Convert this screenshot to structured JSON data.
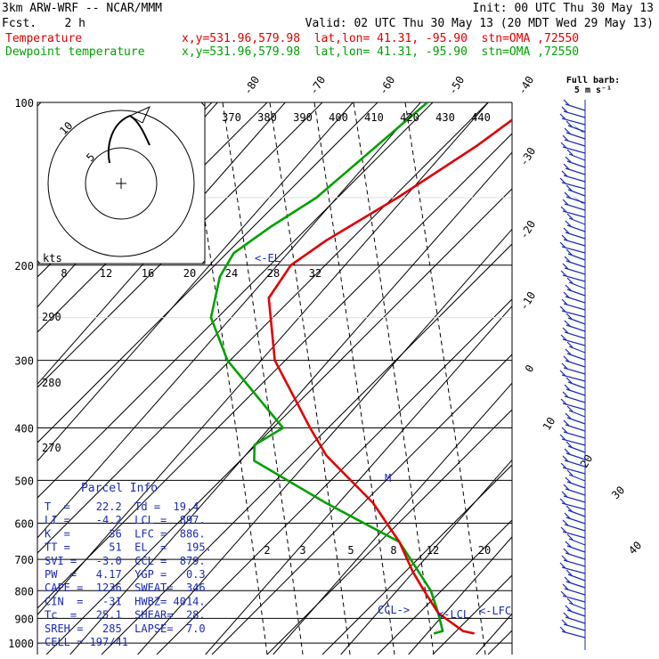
{
  "header": {
    "model": "3km ARW-WRF -- NCAR/MMM",
    "init": "Init: 00 UTC Thu 30 May 13",
    "fcst": "Fcst.    2 h",
    "valid": "Valid: 02 UTC Thu 30 May 13 (20 MDT Wed 29 May 13)",
    "temp_label": "Temperature",
    "dew_label": "Dewpoint temperature",
    "temp_info": "x,y=531.96,579.98  lat,lon= 41.31, -95.90  stn=OMA ,72550",
    "dew_info": "x,y=531.96,579.98  lat,lon= 41.31, -95.90  stn=OMA ,72550"
  },
  "colors": {
    "temperature": "#e00000",
    "dewpoint": "#00a000",
    "parcel": "#1a2ab0",
    "hodograph": "#000000"
  },
  "barb_legend": {
    "title": "Full barb:",
    "value": "5 m s⁻¹"
  },
  "chart_data": {
    "type": "skew-t",
    "pressure_ticks": [
      "100",
      "200",
      "300",
      "400",
      "500",
      "600",
      "700",
      "800",
      "900",
      "1000"
    ],
    "temperature_ticks": [
      "-80",
      "-70",
      "-60",
      "-50",
      "-40",
      "-30",
      "-20",
      "-10",
      "0",
      "10",
      "20",
      "30",
      "40"
    ],
    "theta_labels": [
      "370",
      "380",
      "390",
      "400",
      "410",
      "420",
      "430",
      "440"
    ],
    "theta_side_labels": [
      "290",
      "280",
      "270"
    ],
    "mixing_ratio_labels": [
      "2",
      "3",
      "5",
      "8",
      "12",
      "20"
    ],
    "kts_label": "kts",
    "kts_ticks": [
      "8",
      "12",
      "16",
      "20",
      "24",
      "28",
      "32"
    ],
    "hodograph_rings": [
      "5",
      "10"
    ],
    "level_markers": {
      "el": "<-EL",
      "ccl": "CCL->",
      "lcl": "<-LCL",
      "lfc": "<-LFC",
      "m": "M"
    },
    "temperature_profile": [
      [
        -53,
        100
      ],
      [
        -56,
        120
      ],
      [
        -61,
        150
      ],
      [
        -66,
        180
      ],
      [
        -68,
        200
      ],
      [
        -67,
        230
      ],
      [
        -58,
        300
      ],
      [
        -44,
        400
      ],
      [
        -38,
        450
      ],
      [
        -25,
        550
      ],
      [
        -16,
        650
      ],
      [
        -10,
        740
      ],
      [
        -6,
        800
      ],
      [
        -1,
        880
      ],
      [
        5,
        950
      ],
      [
        7,
        960
      ]
    ],
    "dewpoint_profile": [
      [
        -69,
        100
      ],
      [
        -73,
        150
      ],
      [
        -76,
        170
      ],
      [
        -78,
        190
      ],
      [
        -77,
        210
      ],
      [
        -73,
        250
      ],
      [
        -65,
        300
      ],
      [
        -48,
        400
      ],
      [
        -50,
        430
      ],
      [
        -48,
        460
      ],
      [
        -32,
        550
      ],
      [
        -16,
        650
      ],
      [
        -5,
        800
      ],
      [
        -1,
        880
      ],
      [
        2,
        950
      ],
      [
        1,
        960
      ]
    ],
    "wind_barbs": [
      "100",
      "150",
      "200",
      "250",
      "300",
      "400",
      "500",
      "600",
      "700",
      "800",
      "900",
      "1000"
    ]
  },
  "parcel_info": {
    "title": "Parcel Info",
    "rows": [
      "T  =    22.2  Td =  19.4",
      "LI =    -4.2  LCL =  897.",
      "K  =      36  LFC =  886.",
      "TT =      51  EL  =   195.",
      "SVI =   -3.0  CCL =  879.",
      "PW  =   4.17  YGP =   0.3",
      "CAPE =  1236  SWEAT=  346",
      "CIN  =   -31  HWBZ= 4014.",
      "Tc  =   25.1  SHEAR=  28.",
      "SREH =   285  LAPSE=  7.0",
      "CELL = 197/41"
    ]
  }
}
